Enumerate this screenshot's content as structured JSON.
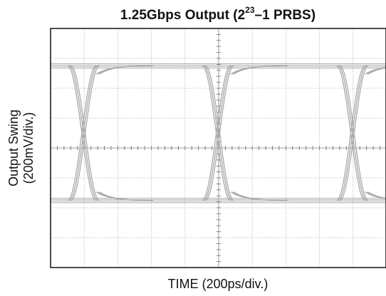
{
  "chart_data": {
    "type": "eye-diagram",
    "title_main": "1.25Gbps Output (2",
    "title_exp": "23",
    "title_tail": "–1 PRBS)",
    "ylabel_line1": "Output Swing",
    "ylabel_line2": "(200mV/div.)",
    "xlabel": "TIME (200ps/div.)",
    "grid": true,
    "x_divisions": 10,
    "y_divisions": 8,
    "unit_interval_div": 4,
    "crossing_times_div": [
      0.98,
      4.98,
      8.98
    ],
    "high_level_div": 6.75,
    "low_level_div": 2.25,
    "crossing_level_div": 4.5,
    "eye_color": "#a9a9a9",
    "grid_color": "#9a9a9a"
  }
}
